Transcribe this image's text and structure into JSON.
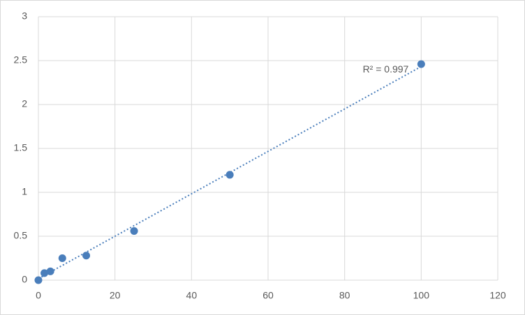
{
  "chart_data": {
    "type": "scatter",
    "x": [
      0,
      1.5625,
      3.125,
      6.25,
      12.5,
      25,
      50,
      100
    ],
    "series": [
      {
        "color": "#4a7ebb",
        "values": [
          0,
          0.08,
          0.1,
          0.25,
          0.28,
          0.56,
          1.2,
          2.46
        ]
      }
    ],
    "xlim": [
      0,
      120
    ],
    "xticks": [
      0,
      20,
      40,
      60,
      80,
      100,
      120
    ],
    "ylim": [
      0,
      3
    ],
    "yticks": [
      0,
      0.5,
      1,
      1.5,
      2,
      2.5,
      3
    ],
    "grid": true,
    "trendline": "linear",
    "annotation": "R² = 0.997"
  }
}
